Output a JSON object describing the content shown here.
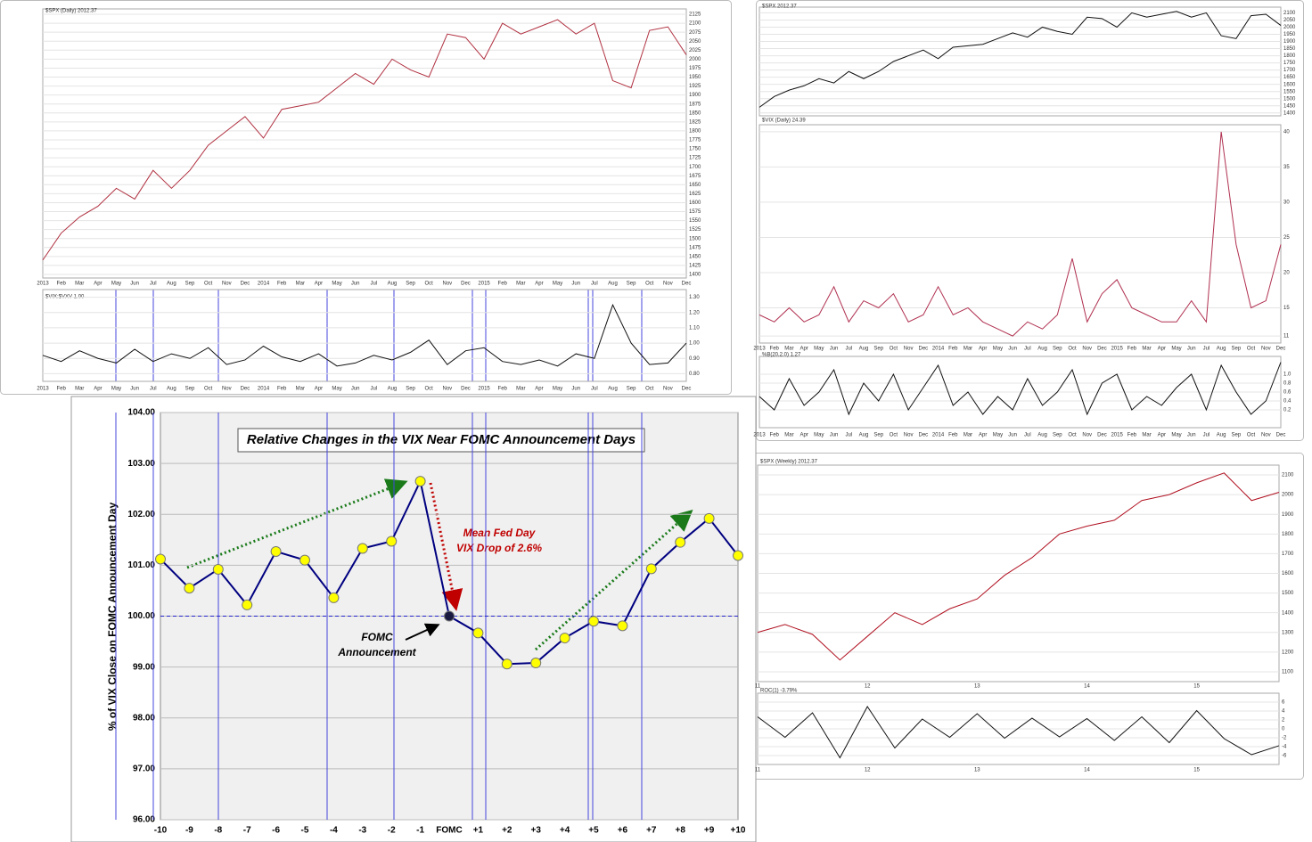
{
  "chart_data": [
    {
      "type": "line",
      "title": "Relative Changes in the VIX Near FOMC Announcement Days",
      "y_label": "% of VIX Close on FOMC Announcement Day",
      "categories": [
        "-10",
        "-9",
        "-8",
        "-7",
        "-6",
        "-5",
        "-4",
        "-3",
        "-2",
        "-1",
        "FOMC",
        "+1",
        "+2",
        "+3",
        "+4",
        "+5",
        "+6",
        "+7",
        "+8",
        "+9",
        "+10"
      ],
      "values": [
        101.12,
        100.55,
        100.92,
        100.22,
        101.27,
        101.1,
        100.36,
        101.33,
        101.47,
        102.65,
        100.0,
        99.67,
        99.06,
        99.08,
        99.57,
        99.9,
        99.81,
        100.93,
        101.45,
        101.92,
        101.19
      ],
      "color": "#000080",
      "marker_color": "#ffff00",
      "highlight_point": 10,
      "highlight_color": "#1a1a40",
      "hline": 100,
      "grid": true,
      "ylim": [
        96,
        104
      ],
      "yticks": [
        {
          "value": 96,
          "label": "96.00"
        },
        {
          "value": 97,
          "label": "97.00"
        },
        {
          "value": 98,
          "label": "98.00"
        },
        {
          "value": 99,
          "label": "99.00"
        },
        {
          "value": 100,
          "label": "100.00"
        },
        {
          "value": 101,
          "label": "101.00"
        },
        {
          "value": 102,
          "label": "102.00"
        },
        {
          "value": 103,
          "label": "103.00"
        },
        {
          "value": 104,
          "label": "104.00"
        }
      ],
      "annotations": [
        "Mean Fed Day",
        "VIX Drop of 2.6%",
        "FOMC",
        "Announcement"
      ]
    },
    {
      "type": "line",
      "title": "$SPX (Daily) 2012.37",
      "color": "#b03040",
      "grid": true,
      "categories": [
        "2013",
        "Feb",
        "Mar",
        "Apr",
        "May",
        "Jun",
        "Jul",
        "Aug",
        "Sep",
        "Oct",
        "Nov",
        "Dec",
        "2014",
        "Feb",
        "Mar",
        "Apr",
        "May",
        "Jun",
        "Jul",
        "Aug",
        "Sep",
        "Oct",
        "Nov",
        "Dec",
        "2015",
        "Feb",
        "Mar",
        "Apr",
        "May",
        "Jun",
        "Jul",
        "Aug",
        "Sep",
        "Oct",
        "Nov",
        "Dec"
      ],
      "values": [
        1440,
        1515,
        1560,
        1590,
        1640,
        1610,
        1690,
        1640,
        1690,
        1760,
        1800,
        1840,
        1780,
        1860,
        1870,
        1880,
        1920,
        1960,
        1930,
        2000,
        1970,
        1950,
        2070,
        2060,
        2000,
        2100,
        2070,
        2090,
        2110,
        2070,
        2100,
        1940,
        1920,
        2080,
        2090,
        2012
      ],
      "ylim": [
        1390,
        2140
      ],
      "yticks": [
        1400,
        1425,
        1450,
        1475,
        1500,
        1525,
        1550,
        1575,
        1600,
        1625,
        1650,
        1675,
        1700,
        1725,
        1750,
        1775,
        1800,
        1825,
        1850,
        1875,
        1900,
        1925,
        1950,
        1975,
        2000,
        2025,
        2050,
        2075,
        2100,
        2125
      ]
    },
    {
      "type": "line",
      "title": "$VIX:$VXV 1.00",
      "color": "#111111",
      "grid": true,
      "categories": [
        "2013",
        "Feb",
        "Mar",
        "Apr",
        "May",
        "Jun",
        "Jul",
        "Aug",
        "Sep",
        "Oct",
        "Nov",
        "Dec",
        "2014",
        "Feb",
        "Mar",
        "Apr",
        "May",
        "Jun",
        "Jul",
        "Aug",
        "Sep",
        "Oct",
        "Nov",
        "Dec",
        "2015",
        "Feb",
        "Mar",
        "Apr",
        "May",
        "Jun",
        "Jul",
        "Aug",
        "Sep",
        "Oct",
        "Nov",
        "Dec"
      ],
      "values": [
        0.92,
        0.88,
        0.95,
        0.9,
        0.87,
        0.96,
        0.88,
        0.93,
        0.9,
        0.97,
        0.86,
        0.89,
        0.98,
        0.91,
        0.88,
        0.93,
        0.85,
        0.87,
        0.92,
        0.89,
        0.94,
        1.02,
        0.86,
        0.95,
        0.97,
        0.88,
        0.86,
        0.89,
        0.85,
        0.93,
        0.9,
        1.25,
        1.0,
        0.86,
        0.87,
        1.0
      ],
      "ylim": [
        0.75,
        1.35
      ],
      "yticks": [
        {
          "value": 0.8,
          "label": "0.80"
        },
        {
          "value": 0.9,
          "label": "0.90"
        },
        {
          "value": 1.0,
          "label": "1.00"
        },
        {
          "value": 1.1,
          "label": "1.10"
        },
        {
          "value": 1.2,
          "label": "1.20"
        },
        {
          "value": 1.3,
          "label": "1.30"
        }
      ]
    },
    {
      "type": "line",
      "title": "$SPX 2012.37",
      "color": "#111111",
      "grid": true,
      "values": [
        1440,
        1515,
        1560,
        1590,
        1640,
        1610,
        1690,
        1640,
        1690,
        1760,
        1800,
        1840,
        1780,
        1860,
        1870,
        1880,
        1920,
        1960,
        1930,
        2000,
        1970,
        1950,
        2070,
        2060,
        2000,
        2100,
        2070,
        2090,
        2110,
        2070,
        2100,
        1940,
        1920,
        2080,
        2090,
        2012
      ],
      "ylim": [
        1380,
        2140
      ],
      "yticks": [
        1400,
        1450,
        1500,
        1550,
        1600,
        1650,
        1700,
        1750,
        1800,
        1850,
        1900,
        1950,
        2000,
        2050,
        2100
      ]
    },
    {
      "type": "line",
      "title": "$VIX (Daily) 24.39",
      "color": "#b03050",
      "grid": true,
      "categories": [
        "2013",
        "Feb",
        "Mar",
        "Apr",
        "May",
        "Jun",
        "Jul",
        "Aug",
        "Sep",
        "Oct",
        "Nov",
        "Dec",
        "2014",
        "Feb",
        "Mar",
        "Apr",
        "May",
        "Jun",
        "Jul",
        "Aug",
        "Sep",
        "Oct",
        "Nov",
        "Dec",
        "2015",
        "Feb",
        "Mar",
        "Apr",
        "May",
        "Jun",
        "Jul",
        "Aug",
        "Sep",
        "Oct",
        "Nov",
        "Dec"
      ],
      "values": [
        14,
        13,
        15,
        13,
        14,
        18,
        13,
        16,
        15,
        17,
        13,
        14,
        18,
        14,
        15,
        13,
        12,
        11,
        13,
        12,
        14,
        22,
        13,
        17,
        19,
        15,
        14,
        13,
        13,
        16,
        13,
        40,
        24,
        15,
        16,
        24
      ],
      "ylim": [
        10,
        41
      ],
      "yticks": [
        11,
        15,
        20,
        25,
        30,
        35,
        40
      ]
    },
    {
      "type": "line",
      "title": "%B(20,2.0) 1.27",
      "color": "#111111",
      "grid": true,
      "categories": [
        "2013",
        "Feb",
        "Mar",
        "Apr",
        "May",
        "Jun",
        "Jul",
        "Aug",
        "Sep",
        "Oct",
        "Nov",
        "Dec",
        "2014",
        "Feb",
        "Mar",
        "Apr",
        "May",
        "Jun",
        "Jul",
        "Aug",
        "Sep",
        "Oct",
        "Nov",
        "Dec",
        "2015",
        "Feb",
        "Mar",
        "Apr",
        "May",
        "Jun",
        "Jul",
        "Aug",
        "Sep",
        "Oct",
        "Nov",
        "Dec"
      ],
      "values": [
        0.5,
        0.2,
        0.9,
        0.3,
        0.6,
        1.1,
        0.1,
        0.8,
        0.4,
        1.0,
        0.2,
        0.7,
        1.2,
        0.3,
        0.6,
        0.1,
        0.5,
        0.2,
        0.9,
        0.3,
        0.6,
        1.1,
        0.1,
        0.8,
        1.0,
        0.2,
        0.5,
        0.3,
        0.7,
        1.0,
        0.2,
        1.2,
        0.6,
        0.1,
        0.4,
        1.27
      ],
      "ylim": [
        -0.2,
        1.4
      ],
      "yticks": [
        0.2,
        0.4,
        0.6,
        0.8,
        {
          "value": 1.0,
          "label": "1.0"
        }
      ]
    },
    {
      "type": "line",
      "title": "$SPX (Weekly) 2012.37",
      "color": "#b01020",
      "grid": true,
      "categories": [
        "11",
        null,
        null,
        null,
        "12",
        null,
        null,
        null,
        "13",
        null,
        null,
        null,
        "14",
        null,
        null,
        null,
        "15",
        null,
        null,
        null
      ],
      "values": [
        1300,
        1340,
        1290,
        1160,
        1280,
        1400,
        1340,
        1420,
        1470,
        1590,
        1680,
        1800,
        1840,
        1870,
        1970,
        2000,
        2060,
        2110,
        1970,
        2012
      ],
      "ylim": [
        1050,
        2150
      ],
      "yticks": [
        1100,
        1200,
        1300,
        1400,
        1500,
        1600,
        1700,
        1800,
        1900,
        2000,
        2100
      ]
    },
    {
      "type": "line",
      "title": "ROC(1) -3.79%",
      "color": "#111111",
      "grid": true,
      "categories": [
        "11",
        null,
        null,
        null,
        "12",
        null,
        null,
        null,
        "13",
        null,
        null,
        null,
        "14",
        null,
        null,
        null,
        "15",
        null,
        null,
        null
      ],
      "values": [
        2.7,
        -1.9,
        3.6,
        -6.5,
        5.0,
        -4.3,
        2.2,
        -1.9,
        3.4,
        -2.1,
        2.4,
        -1.8,
        2.3,
        -2.6,
        2.7,
        -3.1,
        4.1,
        -2.2,
        -5.8,
        -3.79
      ],
      "ylim": [
        -8,
        8
      ],
      "yticks": [
        -6,
        -4,
        -2,
        0,
        2,
        4,
        6
      ]
    }
  ]
}
